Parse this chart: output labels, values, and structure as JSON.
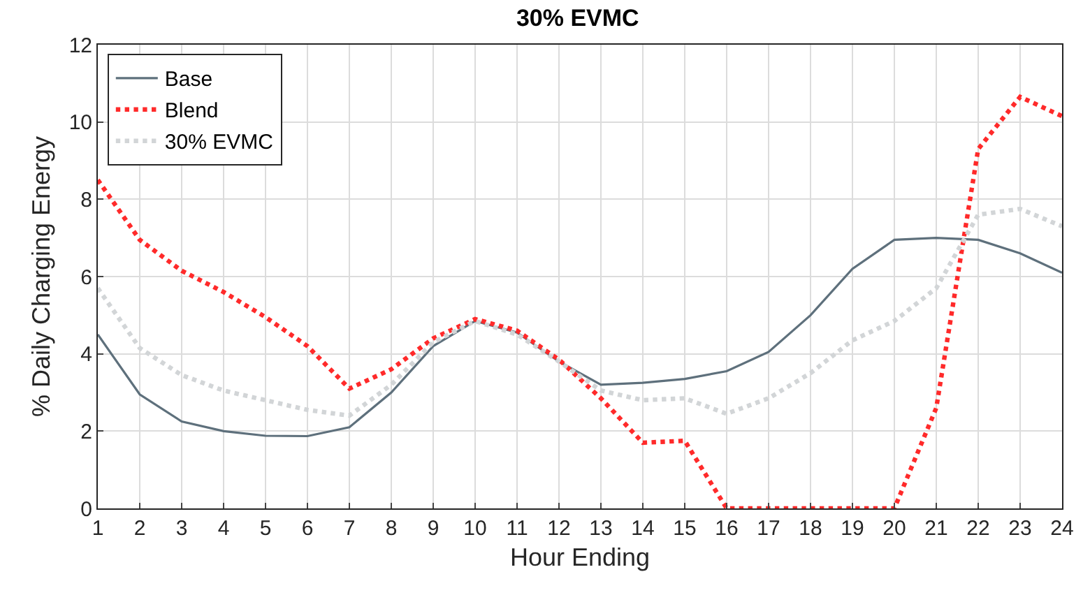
{
  "chart_data": {
    "type": "line",
    "title": "30% EVMC",
    "xlabel": "Hour Ending",
    "ylabel": "% Daily Charging Energy",
    "x": [
      1,
      2,
      3,
      4,
      5,
      6,
      7,
      8,
      9,
      10,
      11,
      12,
      13,
      14,
      15,
      16,
      17,
      18,
      19,
      20,
      21,
      22,
      23,
      24
    ],
    "xlim": [
      1,
      24
    ],
    "xticks": [
      1,
      2,
      3,
      4,
      5,
      6,
      7,
      8,
      9,
      10,
      11,
      12,
      13,
      14,
      15,
      16,
      17,
      18,
      19,
      20,
      21,
      22,
      23,
      24
    ],
    "ylim": [
      0,
      12
    ],
    "yticks": [
      0,
      2,
      4,
      6,
      8,
      10,
      12
    ],
    "grid": true,
    "legend": "top left",
    "marker": "none",
    "series": [
      {
        "name": "Base",
        "color": "#5e707c",
        "line_style": "solid",
        "values": [
          4.5,
          2.95,
          2.25,
          2.0,
          1.88,
          1.87,
          2.1,
          3.0,
          4.2,
          4.85,
          4.55,
          3.8,
          3.2,
          3.25,
          3.35,
          3.55,
          4.05,
          5.0,
          6.2,
          6.95,
          7.0,
          6.95,
          6.6,
          6.1
        ]
      },
      {
        "name": "Blend",
        "color": "#ff2a2a",
        "line_style": "dotted",
        "values": [
          8.5,
          6.95,
          6.15,
          5.6,
          4.95,
          4.2,
          3.1,
          3.6,
          4.4,
          4.9,
          4.6,
          3.85,
          2.85,
          1.7,
          1.75,
          0,
          0,
          0,
          0,
          0,
          2.6,
          9.3,
          10.65,
          10.15
        ]
      },
      {
        "name": "30% EVMC",
        "color": "#d2d5d7",
        "line_style": "dotted",
        "values": [
          5.7,
          4.15,
          3.45,
          3.05,
          2.8,
          2.55,
          2.4,
          3.2,
          4.3,
          4.85,
          4.5,
          3.8,
          3.05,
          2.8,
          2.85,
          2.45,
          2.85,
          3.5,
          4.35,
          4.85,
          5.7,
          7.6,
          7.75,
          7.3
        ]
      }
    ]
  }
}
